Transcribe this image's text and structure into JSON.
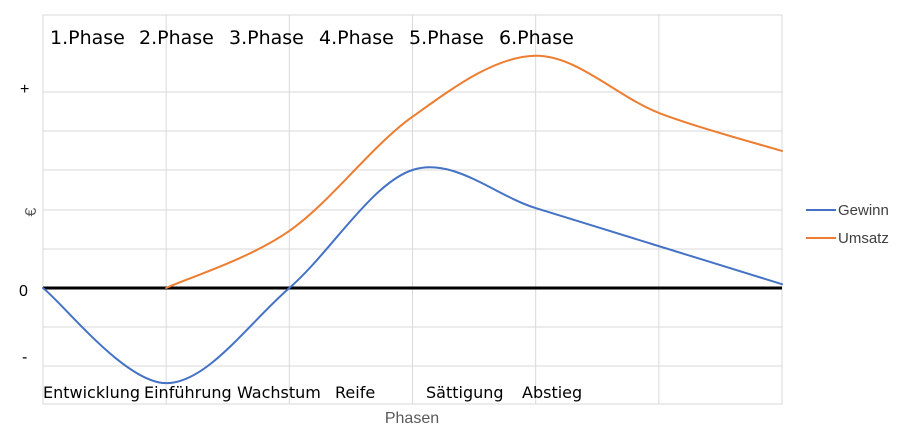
{
  "chart_data": {
    "type": "line",
    "xlabel": "Phasen",
    "ylabel": "€",
    "y_ticks": [
      "+",
      "0",
      "-"
    ],
    "phases": [
      "1.Phase",
      "2.Phase",
      "3.Phase",
      "4.Phase",
      "5.Phase",
      "6.Phase"
    ],
    "categories": [
      "Entwicklung",
      "Einführung",
      "Wachstum",
      "Reife",
      "Sättigung",
      "Abstieg"
    ],
    "x": [
      0,
      1,
      2,
      3,
      4,
      5,
      6
    ],
    "ylim": [
      -1.25,
      3.5
    ],
    "grid": true,
    "legend": "right",
    "series": [
      {
        "name": "Gewinn",
        "color": "#4472c4",
        "values": [
          0,
          -1.25,
          0,
          1.55,
          1.05,
          0.55,
          0.05
        ]
      },
      {
        "name": "Umsatz",
        "color": "#ed7d31",
        "values": [
          null,
          0,
          0.75,
          2.25,
          3.05,
          2.3,
          1.8
        ]
      }
    ]
  }
}
